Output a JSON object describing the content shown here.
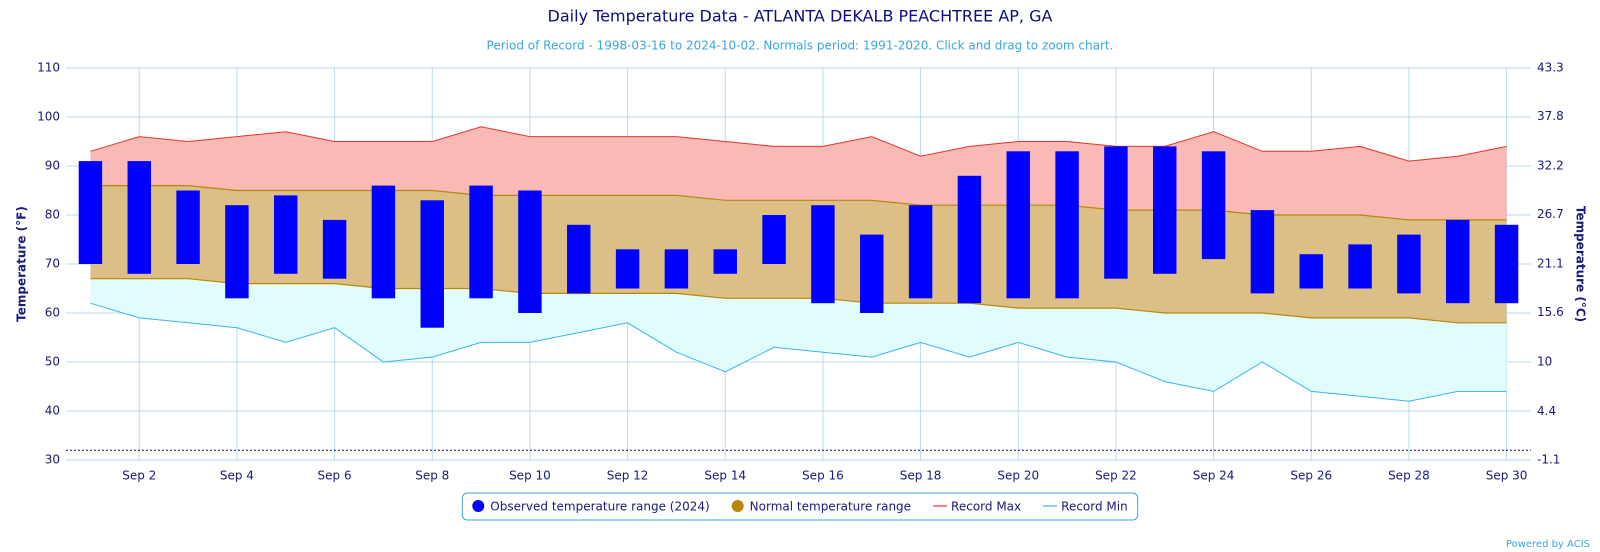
{
  "chart_data": {
    "type": "range",
    "title": "Daily Temperature Data - ATLANTA DEKALB PEACHTREE AP, GA",
    "subtitle": "Period of Record - 1998-03-16 to 2024-10-02. Normals period: 1991-2020. Click and drag to zoom chart.",
    "y_label": "Temperature (°F)",
    "y2_label": "Temperature (°C)",
    "credit": "Powered by ACIS",
    "categories": [
      null,
      "Sep 2",
      null,
      "Sep 4",
      null,
      "Sep 6",
      null,
      "Sep 8",
      null,
      "Sep 10",
      null,
      "Sep 12",
      null,
      "Sep 14",
      null,
      "Sep 16",
      null,
      "Sep 18",
      null,
      "Sep 20",
      null,
      "Sep 22",
      null,
      "Sep 24",
      null,
      "Sep 26",
      null,
      "Sep 28",
      null,
      "Sep 30"
    ],
    "ylim": [
      30,
      110
    ],
    "yticks": [
      30,
      40,
      50,
      60,
      70,
      80,
      90,
      100,
      110
    ],
    "y2lim": [
      -1.1,
      43.3
    ],
    "y2ticks": [
      -1.1,
      4.4,
      10,
      15.6,
      21.1,
      26.7,
      32.2,
      37.8,
      43.3
    ],
    "reference_line": 32,
    "grid": true,
    "legend": "bottom",
    "series": [
      {
        "name": "Observed temperature range (2024)",
        "color": "#0000ff",
        "low": [
          70,
          68,
          70,
          63,
          68,
          67,
          63,
          57,
          63,
          60,
          64,
          65,
          65,
          68,
          70,
          62,
          60,
          63,
          62,
          63,
          63,
          67,
          68,
          71,
          64,
          65,
          65,
          64,
          62,
          62
        ],
        "high": [
          91,
          91,
          85,
          82,
          84,
          79,
          86,
          83,
          86,
          85,
          78,
          73,
          73,
          73,
          80,
          82,
          76,
          82,
          88,
          93,
          93,
          94,
          94,
          93,
          81,
          72,
          74,
          76,
          79,
          78
        ]
      },
      {
        "name": "Normal temperature range",
        "color": "#b8860b",
        "low": [
          67,
          67,
          67,
          66,
          66,
          66,
          65,
          65,
          65,
          64,
          64,
          64,
          64,
          63,
          63,
          63,
          62,
          62,
          62,
          61,
          61,
          61,
          60,
          60,
          60,
          59,
          59,
          59,
          58,
          58
        ],
        "high": [
          86,
          86,
          86,
          85,
          85,
          85,
          85,
          85,
          84,
          84,
          84,
          84,
          84,
          83,
          83,
          83,
          83,
          82,
          82,
          82,
          82,
          81,
          81,
          81,
          80,
          80,
          80,
          79,
          79,
          79
        ]
      },
      {
        "name": "Record Max",
        "color": "#e8332a",
        "values": [
          93,
          96,
          95,
          96,
          97,
          95,
          95,
          95,
          98,
          96,
          96,
          96,
          96,
          95,
          94,
          94,
          96,
          92,
          94,
          95,
          95,
          94,
          94,
          97,
          93,
          93,
          94,
          91,
          92,
          94
        ]
      },
      {
        "name": "Record Min",
        "color": "#3ab4ea",
        "values": [
          62,
          59,
          58,
          57,
          54,
          57,
          50,
          51,
          54,
          54,
          56,
          58,
          52,
          48,
          53,
          52,
          51,
          54,
          51,
          54,
          51,
          50,
          46,
          44,
          50,
          44,
          43,
          42,
          44,
          44
        ]
      }
    ]
  }
}
